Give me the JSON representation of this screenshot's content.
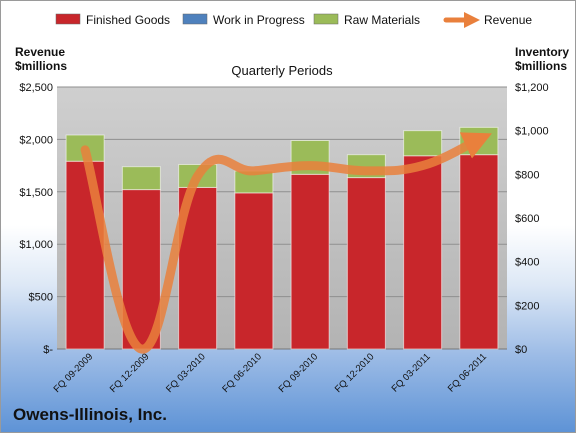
{
  "company": "Owens-Illinois, Inc.",
  "chart_data": {
    "type": "bar",
    "subtitle": "Quarterly Periods",
    "left_axis_title": [
      "Revenue",
      "$millions"
    ],
    "right_axis_title": [
      "Inventory",
      "$millions"
    ],
    "left_ticks": [
      "$-",
      "$500",
      "$1,000",
      "$1,500",
      "$2,000",
      "$2,500"
    ],
    "right_ticks": [
      "$0",
      "$200",
      "$400",
      "$600",
      "$800",
      "$1,000",
      "$1,200"
    ],
    "left_range": [
      0,
      2500
    ],
    "right_range": [
      0,
      1200
    ],
    "stacked": true,
    "grid": true,
    "legend_position": "top",
    "categories": [
      "FQ 09-2009",
      "FQ 12-2009",
      "FQ 03-2010",
      "FQ 06-2010",
      "FQ 09-2010",
      "FQ 12-2010",
      "FQ 03-2011",
      "FQ 06-2011"
    ],
    "series": [
      {
        "name": "Finished Goods",
        "axis": "right",
        "color": "#c8262b",
        "values": [
          860,
          730,
          740,
          715,
          800,
          785,
          885,
          890
        ]
      },
      {
        "name": "Work in Progress",
        "axis": "right",
        "color": "#4f81bd",
        "values": [
          0,
          0,
          0,
          0,
          0,
          0,
          0,
          0
        ]
      },
      {
        "name": "Raw Materials",
        "axis": "right",
        "color": "#9bbb59",
        "values": [
          120,
          105,
          105,
          100,
          155,
          105,
          115,
          125
        ]
      },
      {
        "name": "Revenue",
        "axis": "left",
        "type": "line",
        "color": "#e9803c",
        "values": [
          1900,
          0,
          1650,
          1700,
          1750,
          1700,
          1750,
          2000
        ]
      }
    ]
  }
}
